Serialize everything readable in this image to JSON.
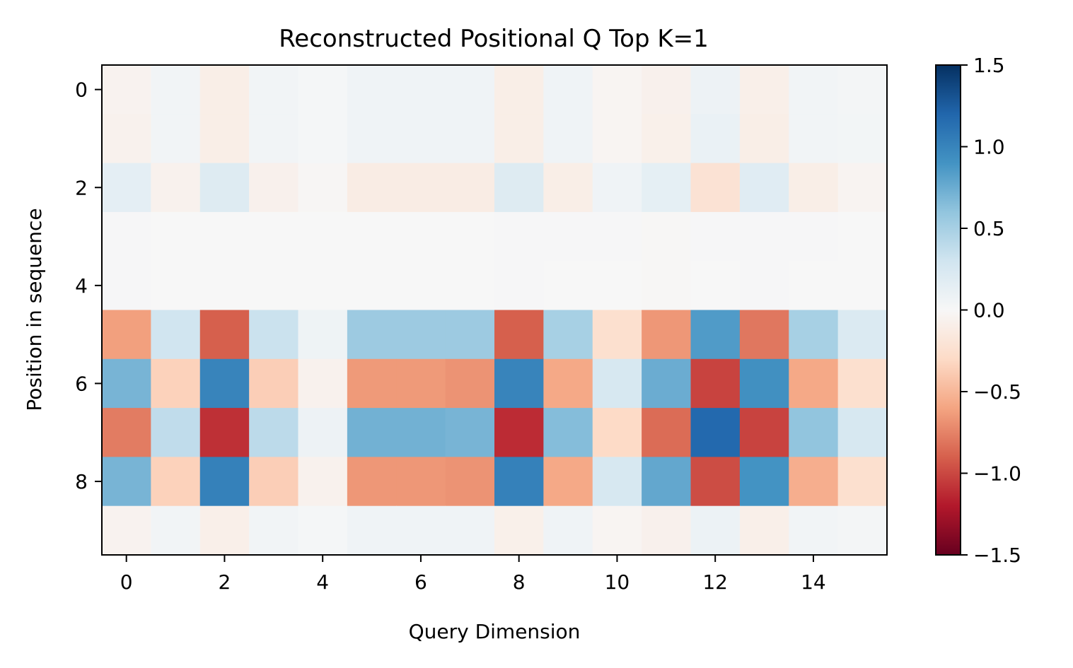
{
  "chart_data": {
    "type": "heatmap",
    "title": "Reconstructed Positional Q Top K=1",
    "xlabel": "Query Dimension",
    "ylabel": "Position in sequence",
    "x_ticks": [
      "0",
      "2",
      "4",
      "6",
      "8",
      "10",
      "12",
      "14"
    ],
    "y_ticks": [
      "0",
      "2",
      "4",
      "6",
      "8"
    ],
    "colormap": "RdBu",
    "vmin": -1.5,
    "vmax": 1.5,
    "colorbar_ticks": [
      "−1.5",
      "−1.0",
      "−0.5",
      "0.0",
      "0.5",
      "1.0",
      "1.5"
    ],
    "colorbar_tick_values": [
      -1.5,
      -1.0,
      -0.5,
      0.0,
      0.5,
      1.0,
      1.5
    ],
    "rows": 10,
    "cols": 16,
    "values": [
      [
        -0.05,
        0.05,
        -0.1,
        0.05,
        0.02,
        0.06,
        0.06,
        0.06,
        -0.1,
        0.06,
        -0.03,
        -0.07,
        0.08,
        -0.09,
        0.05,
        0.03
      ],
      [
        -0.06,
        0.05,
        -0.1,
        0.05,
        0.02,
        0.06,
        0.06,
        0.06,
        -0.1,
        0.06,
        -0.03,
        -0.08,
        0.1,
        -0.1,
        0.05,
        0.04
      ],
      [
        0.15,
        -0.06,
        0.2,
        -0.07,
        -0.02,
        -0.12,
        -0.12,
        -0.12,
        0.2,
        -0.1,
        0.06,
        0.14,
        -0.22,
        0.18,
        -0.1,
        -0.04
      ],
      [
        0.01,
        0.0,
        0.0,
        0.0,
        0.0,
        0.0,
        0.0,
        0.0,
        0.01,
        0.01,
        0.01,
        -0.01,
        0.01,
        0.01,
        0.01,
        0.0
      ],
      [
        0.01,
        0.0,
        0.0,
        0.0,
        0.0,
        0.0,
        0.0,
        0.0,
        0.01,
        0.0,
        0.0,
        -0.01,
        0.0,
        0.01,
        0.0,
        0.0
      ],
      [
        -0.62,
        0.3,
        -0.9,
        0.33,
        0.07,
        0.55,
        0.55,
        0.55,
        -0.9,
        0.5,
        -0.25,
        -0.66,
        0.85,
        -0.8,
        0.5,
        0.22
      ],
      [
        0.7,
        -0.35,
        1.0,
        -0.37,
        -0.06,
        -0.65,
        -0.65,
        -0.68,
        1.0,
        -0.58,
        0.25,
        0.75,
        -1.02,
        0.92,
        -0.58,
        -0.25
      ],
      [
        -0.78,
        0.38,
        -1.1,
        0.4,
        0.08,
        0.72,
        0.72,
        0.7,
        -1.12,
        0.65,
        -0.3,
        -0.85,
        1.18,
        -1.02,
        0.6,
        0.25
      ],
      [
        0.7,
        -0.35,
        1.02,
        -0.37,
        -0.06,
        -0.66,
        -0.66,
        -0.68,
        1.02,
        -0.58,
        0.25,
        0.78,
        -0.98,
        0.9,
        -0.55,
        -0.25
      ],
      [
        -0.05,
        0.05,
        -0.09,
        0.05,
        0.02,
        0.06,
        0.06,
        0.06,
        -0.08,
        0.06,
        -0.03,
        -0.07,
        0.09,
        -0.09,
        0.05,
        0.03
      ]
    ]
  }
}
